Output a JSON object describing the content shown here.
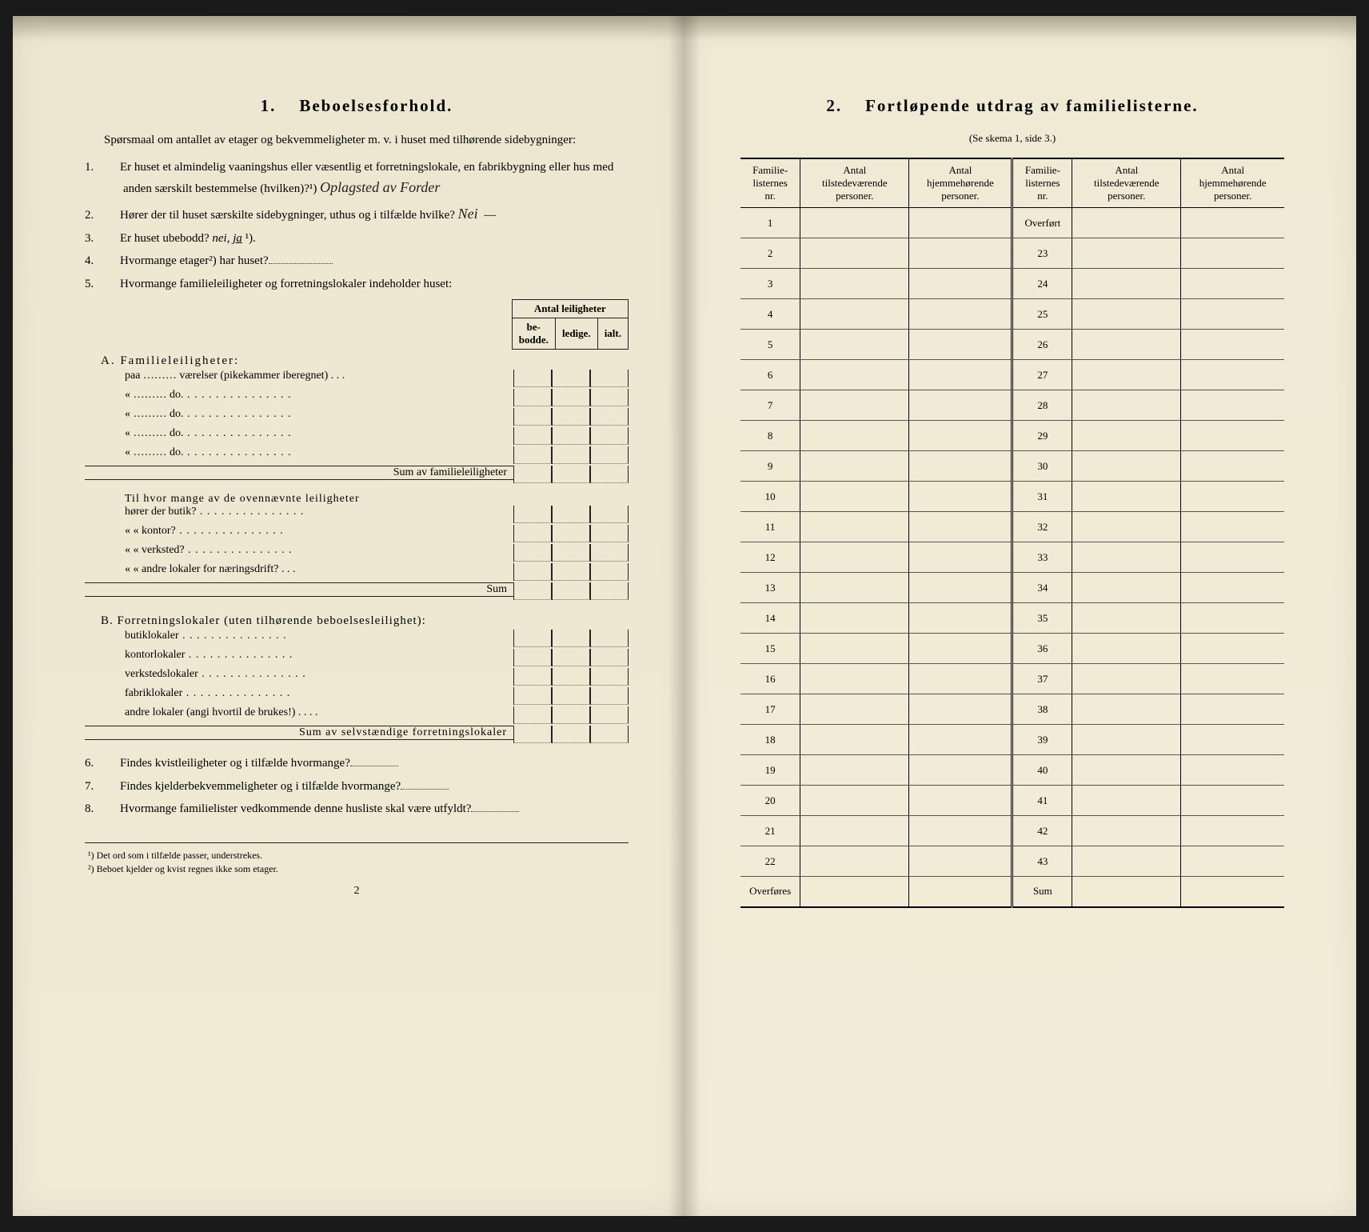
{
  "left": {
    "heading_num": "1.",
    "heading": "Beboelsesforhold.",
    "intro": "Spørsmaal om antallet av etager og bekvemmeligheter m. v. i huset med tilhørende sidebygninger:",
    "q1": "Er huset et almindelig vaaningshus eller væsentlig et forretningslokale, en fabrikbygning eller hus med anden særskilt bestemmelse (hvilken)?¹)",
    "q1_hand": "Oplagsted av Forder",
    "q2": "Hører der til huset særskilte sidebygninger, uthus og i tilfælde hvilke?",
    "q2_hand": "Nei",
    "q3_a": "Er huset ubebodd?  ",
    "q3_b": "nei, ",
    "q3_c": "ja",
    "q3_d": "¹).",
    "q4": "Hvormange etager²) har huset?",
    "q5": "Hvormange familieleiligheter og forretningslokaler indeholder huset:",
    "tbl_header": "Antal leiligheter",
    "tbl_c1": "be-\nbodde.",
    "tbl_c2": "ledige.",
    "tbl_c3": "ialt.",
    "secA": "A. Familieleiligheter:",
    "secA_r1": "paa ……… værelser (pikekammer iberegnet) . . .",
    "secA_do": "«  ………     do.",
    "secA_sum": "Sum av familieleiligheter",
    "secA_mid": "Til hvor mange av de ovennævnte leiligheter",
    "secA_mid_r1": "hører der butik?",
    "secA_mid_r2": "«     «   kontor?",
    "secA_mid_r3": "«     «   verksted?",
    "secA_mid_r4": "«     «   andre lokaler for næringsdrift?  . . .",
    "secA_mid_sum": "Sum",
    "secB": "B. Forretningslokaler (uten tilhørende beboelsesleilighet):",
    "secB_r1": "butiklokaler",
    "secB_r2": "kontorlokaler",
    "secB_r3": "verkstedslokaler",
    "secB_r4": "fabriklokaler",
    "secB_r5": "andre lokaler (angi hvortil de brukes!)  . . . .",
    "secB_sum": "Sum av selvstændige forretningslokaler",
    "q6": "Findes kvistleiligheter og i tilfælde hvormange?",
    "q7": "Findes kjelderbekvemmeligheter og i tilfælde hvormange?",
    "q8": "Hvormange familielister vedkommende denne husliste skal være utfyldt?",
    "fn1": "¹) Det ord som i tilfælde passer, understrekes.",
    "fn2": "²) Beboet kjelder og kvist regnes ikke som etager.",
    "page_num": "2"
  },
  "right": {
    "heading_num": "2.",
    "heading": "Fortløpende utdrag av familielisterne.",
    "subtitle": "(Se skema 1, side 3.)",
    "h1": "Familie-\nlisternes\nnr.",
    "h2": "Antal\ntilstedeværende\npersoner.",
    "h3": "Antal\nhjemmehørende\npersoner.",
    "left_rows": [
      "1",
      "2",
      "3",
      "4",
      "5",
      "6",
      "7",
      "8",
      "9",
      "10",
      "11",
      "12",
      "13",
      "14",
      "15",
      "16",
      "17",
      "18",
      "19",
      "20",
      "21",
      "22",
      "Overføres"
    ],
    "right_rows": [
      "Overført",
      "23",
      "24",
      "25",
      "26",
      "27",
      "28",
      "29",
      "30",
      "31",
      "32",
      "33",
      "34",
      "35",
      "36",
      "37",
      "38",
      "39",
      "40",
      "41",
      "42",
      "43",
      "Sum"
    ]
  }
}
